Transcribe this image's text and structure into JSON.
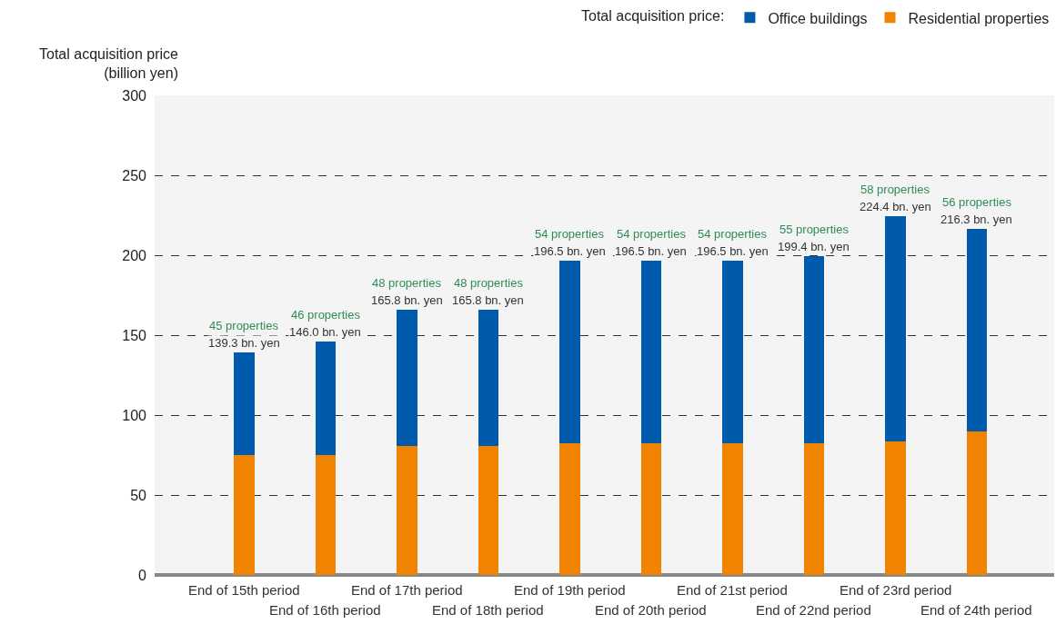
{
  "chart_data": {
    "type": "bar",
    "stacked": true,
    "ylabel": "Total acquisition price\n(billion yen)",
    "legend_title": "Total acquisition price:",
    "legend": "top right",
    "grid": "y",
    "line_style": "dashed",
    "categories": [
      "End of 15th period",
      "End of 16th period",
      "End of 17th period",
      "End of 18th period",
      "End of 19th period",
      "End of 20th period",
      "End of 21st period",
      "End of 22nd period",
      "End of 23rd period",
      "End of 24th period"
    ],
    "series": [
      {
        "name": "Residential properties",
        "color": "#f08300",
        "values": [
          75.0,
          75.0,
          80.6,
          80.6,
          82.6,
          82.6,
          82.6,
          82.6,
          83.6,
          89.5
        ]
      },
      {
        "name": "Office buildings",
        "color": "#005bac",
        "values": [
          64.3,
          71.0,
          85.2,
          85.2,
          113.9,
          113.9,
          113.9,
          116.8,
          140.8,
          126.8
        ]
      }
    ],
    "totals": [
      "139.3 bn. yen",
      "146.0 bn. yen",
      "165.8 bn. yen",
      "165.8 bn. yen",
      "196.5 bn. yen",
      "196.5 bn. yen",
      "196.5 bn. yen",
      "199.4 bn. yen",
      "224.4 bn. yen",
      "216.3 bn. yen"
    ],
    "annotations": [
      {
        "text": "45 properties",
        "x": "End of 15th period",
        "y": 139.3
      },
      {
        "text": "46 properties",
        "x": "End of 16th period",
        "y": 146.0
      },
      {
        "text": "48 properties",
        "x": "End of 17th period",
        "y": 165.8
      },
      {
        "text": "48 properties",
        "x": "End of 18th period",
        "y": 165.8
      },
      {
        "text": "54 properties",
        "x": "End of 19th period",
        "y": 196.5
      },
      {
        "text": "54 properties",
        "x": "End of 20th period",
        "y": 196.5
      },
      {
        "text": "54 properties",
        "x": "End of 21st period",
        "y": 196.5
      },
      {
        "text": "55 properties",
        "x": "End of 22nd period",
        "y": 199.4
      },
      {
        "text": "58 properties",
        "x": "End of 23rd period",
        "y": 224.4
      },
      {
        "text": "56 properties",
        "x": "End of 24th period",
        "y": 216.3
      }
    ],
    "ylim": [
      0,
      300
    ],
    "yticks": [
      0,
      50,
      100,
      150,
      200,
      250,
      300
    ]
  }
}
